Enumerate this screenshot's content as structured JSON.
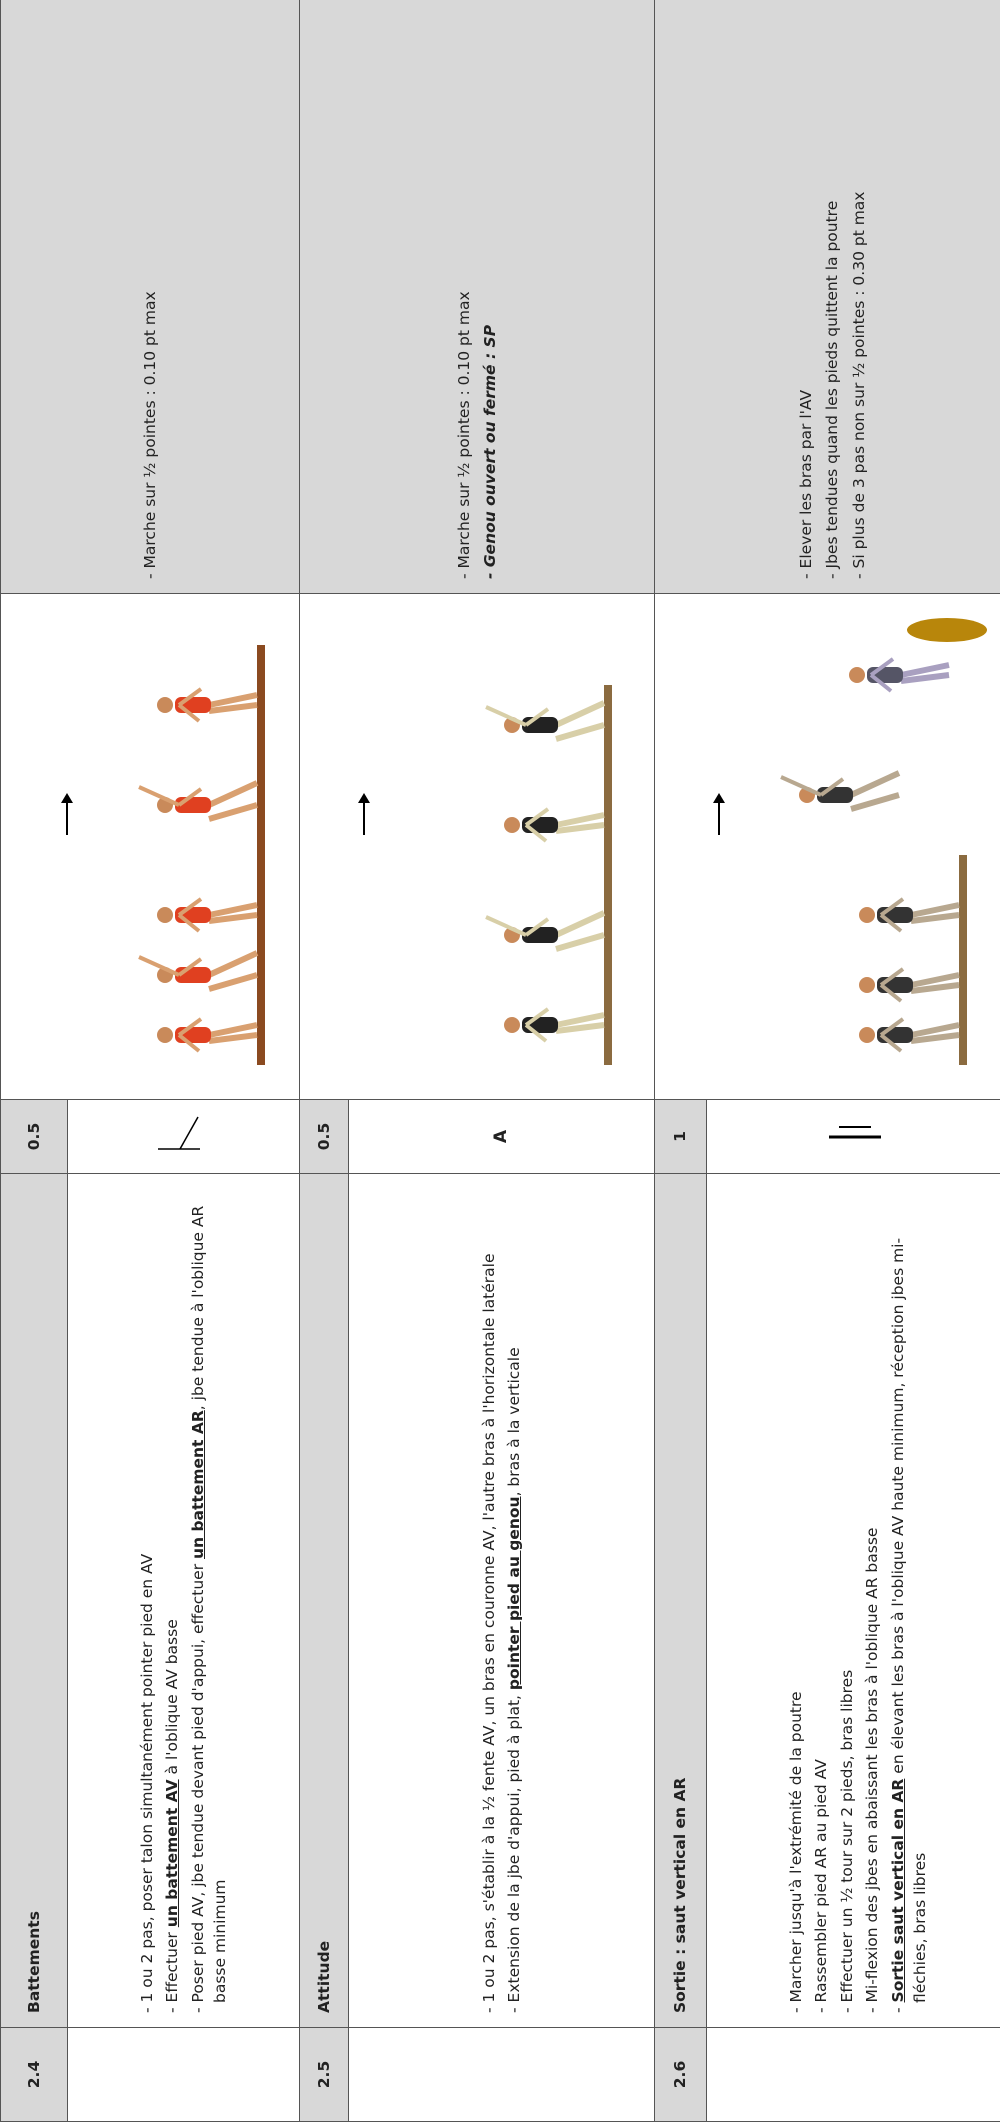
{
  "rows": [
    {
      "number": "2.4",
      "title": "Battements",
      "points": "0.5",
      "steps": [
        [
          "- 1 ou 2 pas, poser talon simultanément pointer pied en AV"
        ],
        [
          "- Effectuer ",
          "un battement AV",
          " à l'oblique AV basse"
        ],
        [
          "- Poser pied AV, jbe tendue devant pied d'appui, effectuer ",
          "un battement AR",
          ", jbe tendue à l'oblique AR basse minimum"
        ]
      ],
      "remarks": [
        "- Marche sur ½ pointes : 0.10 pt max"
      ]
    },
    {
      "number": "2.5",
      "title": "Attitude",
      "points": "0.5",
      "symbol": "A",
      "steps": [
        [
          "- 1 ou 2 pas, s'établir à la ½ fente AV,  un bras en couronne AV, l'autre bras à l'horizontale latérale"
        ],
        [
          "- Extension de la jbe d'appui, pied à plat, ",
          "pointer pied au genou",
          ", bras à la verticale"
        ]
      ],
      "remarks": [
        "- Marche sur ½ pointes : 0.10 pt max"
      ],
      "remarks_bold": [
        "- Genou ouvert ou fermé : SP"
      ]
    },
    {
      "number": "2.6",
      "title": "Sortie : saut vertical en AR",
      "points": "1",
      "steps": [
        [
          "- Marcher jusqu'à l'extrémité de la poutre"
        ],
        [
          "- Rassembler pied AR au pied AV"
        ],
        [
          "- Effectuer un ½ tour sur 2 pieds, bras libres"
        ],
        [
          "- Mi-flexion des jbes en abaissant les bras à l'oblique AR basse"
        ],
        [
          "- ",
          "Sortie saut vertical en AR",
          " en élevant les bras à l'oblique AV haute minimum, réception jbes mi-fléchies, bras libres"
        ]
      ],
      "remarks": [
        "- Elever les bras par l'AV",
        "- Jbes tendues quand les pieds quittent la poutre",
        "- Si plus de 3 pas non sur ½ pointes : 0.30 pt max"
      ]
    }
  ]
}
